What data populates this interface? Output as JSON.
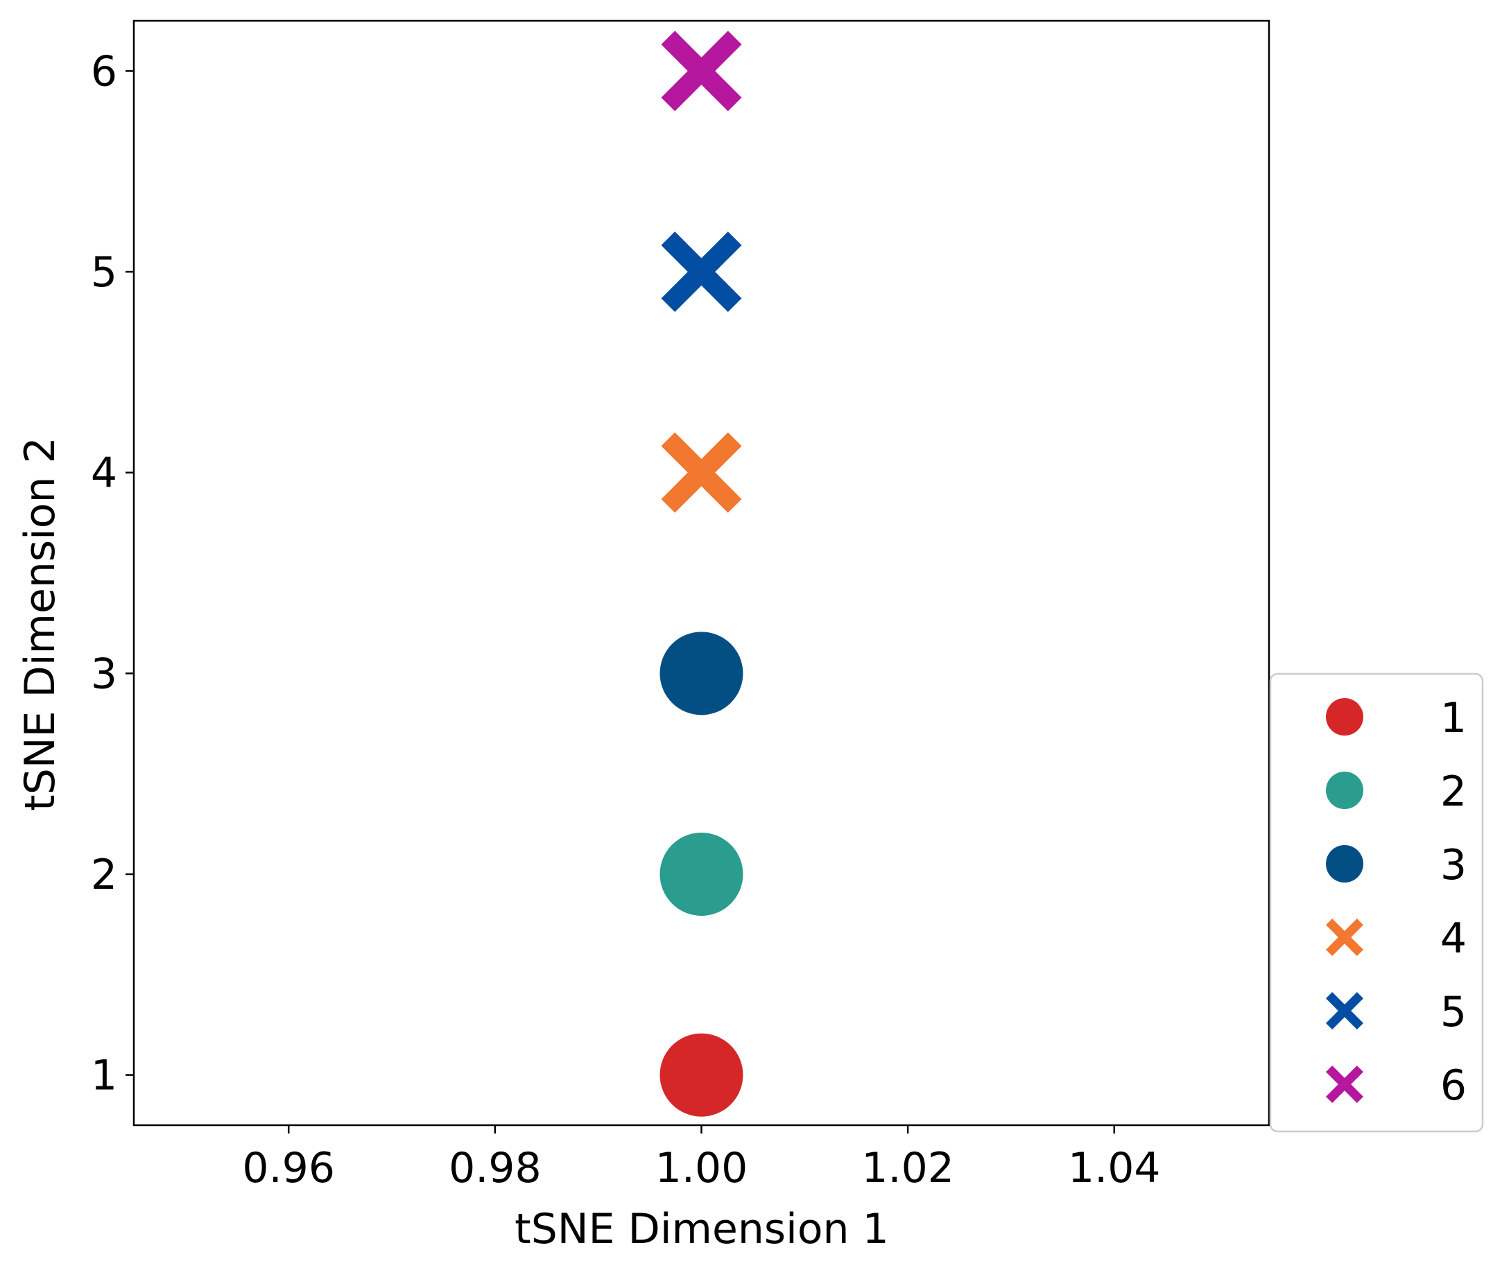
{
  "chart_data": {
    "type": "scatter",
    "title": "",
    "xlabel": "tSNE Dimension 1",
    "ylabel": "tSNE Dimension 2",
    "xlim": [
      0.945,
      1.055
    ],
    "ylim": [
      0.75,
      6.25
    ],
    "x_ticks": [
      0.96,
      0.98,
      1.0,
      1.02,
      1.04
    ],
    "x_tick_labels": [
      "0.96",
      "0.98",
      "1.00",
      "1.02",
      "1.04"
    ],
    "y_ticks": [
      1,
      2,
      3,
      4,
      5,
      6
    ],
    "y_tick_labels": [
      "1",
      "2",
      "3",
      "4",
      "5",
      "6"
    ],
    "grid": false,
    "legend_position": "outside-lower-right",
    "series": [
      {
        "name": "1",
        "marker": "circle",
        "color": "#d62728",
        "x": [
          1.0
        ],
        "y": [
          1
        ]
      },
      {
        "name": "2",
        "marker": "circle",
        "color": "#2a9d8f",
        "x": [
          1.0
        ],
        "y": [
          2
        ]
      },
      {
        "name": "3",
        "marker": "circle",
        "color": "#034f84",
        "x": [
          1.0
        ],
        "y": [
          3
        ]
      },
      {
        "name": "4",
        "marker": "x",
        "color": "#f2772f",
        "x": [
          1.0
        ],
        "y": [
          4
        ]
      },
      {
        "name": "5",
        "marker": "x",
        "color": "#034ea2",
        "x": [
          1.0
        ],
        "y": [
          5
        ]
      },
      {
        "name": "6",
        "marker": "x",
        "color": "#b5179e",
        "x": [
          1.0
        ],
        "y": [
          6
        ]
      }
    ]
  }
}
